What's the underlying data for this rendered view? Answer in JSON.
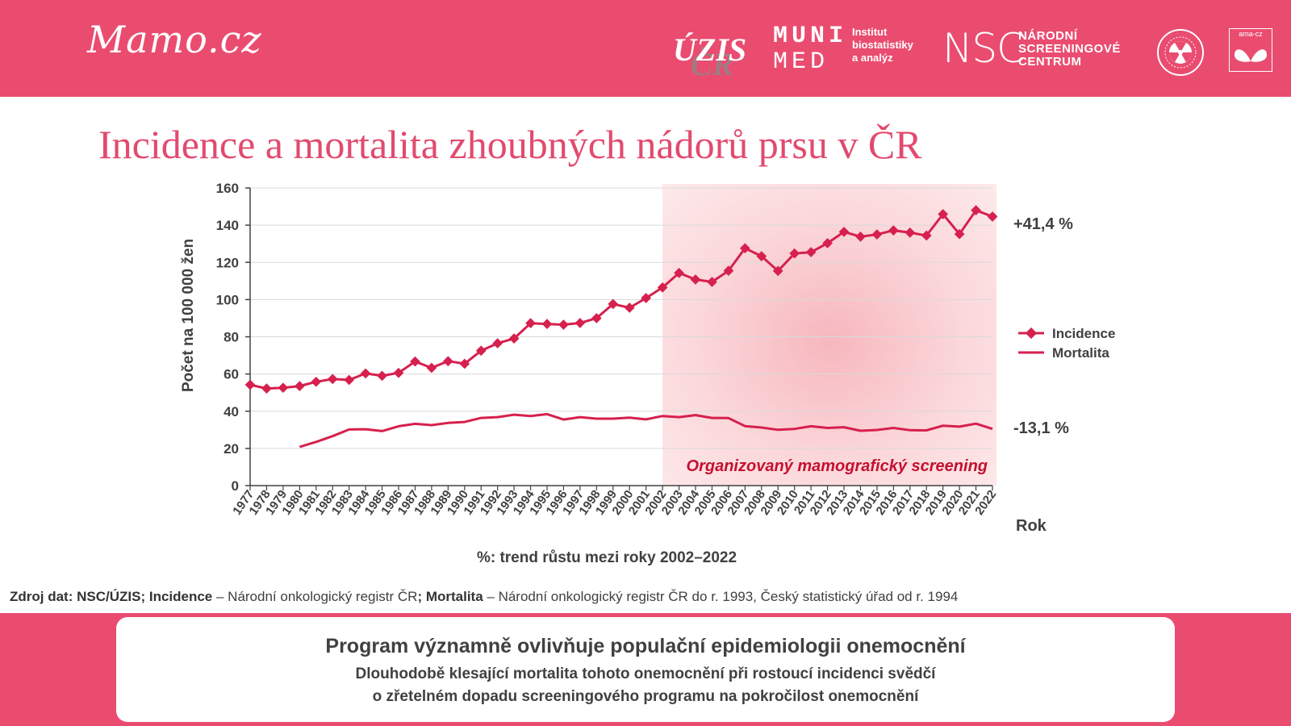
{
  "header": {
    "brand": "Mamo.cz",
    "logos": {
      "uzis": "ÚZIS",
      "uzis_sub": "ČR",
      "muni_line1": "MUNI",
      "muni_line2": "MED",
      "ibia_line1": "Institut",
      "ibia_line2": "biostatistiky",
      "ibia_line3": "a analýz",
      "nsc": "NSC",
      "nsc_line1": "NÁRODNÍ",
      "nsc_line2": "SCREENINGOVÉ",
      "nsc_line3": "CENTRUM",
      "ama": "ama-cz"
    }
  },
  "title": "Incidence a mortalita zhoubných nádorů prsu v ČR",
  "chart_data": {
    "type": "line",
    "ylabel": "Počet  na 100 000 žen",
    "xlabel": "Rok",
    "subtitle": "%: trend růstu mezi roky 2002–2022",
    "ylim": [
      0,
      160
    ],
    "yticks": [
      0,
      20,
      40,
      60,
      80,
      100,
      120,
      140,
      160
    ],
    "grid": "horizontal",
    "legend_position": "right",
    "shaded_region": {
      "from": 2002,
      "to": 2022,
      "label": "Organizovaný mamografický screening"
    },
    "x": [
      1977,
      1978,
      1979,
      1980,
      1981,
      1982,
      1983,
      1984,
      1985,
      1986,
      1987,
      1988,
      1989,
      1990,
      1991,
      1992,
      1993,
      1994,
      1995,
      1996,
      1997,
      1998,
      1999,
      2000,
      2001,
      2002,
      2003,
      2004,
      2005,
      2006,
      2007,
      2008,
      2009,
      2010,
      2011,
      2012,
      2013,
      2014,
      2015,
      2016,
      2017,
      2018,
      2019,
      2020,
      2021,
      2022
    ],
    "series": [
      {
        "name": "Incidence",
        "color": "#D6204E",
        "marker": "diamond",
        "end_annotation": "+41,4 %",
        "values": [
          54.2,
          52.2,
          52.6,
          53.5,
          55.8,
          57.3,
          56.8,
          60.3,
          59.0,
          60.6,
          66.7,
          63.3,
          66.9,
          65.5,
          72.5,
          76.5,
          79.1,
          87.3,
          86.9,
          86.5,
          87.4,
          90.0,
          97.6,
          95.6,
          100.8,
          106.5,
          114.3,
          110.8,
          109.5,
          115.5,
          127.6,
          123.3,
          115.4,
          124.8,
          125.5,
          130.3,
          136.4,
          133.8,
          135.0,
          137.2,
          136.0,
          134.4,
          145.9,
          135.2,
          148.0,
          144.6
        ]
      },
      {
        "name": "Mortalita",
        "color": "#D6204E",
        "marker": "none",
        "end_annotation": "-13,1 %",
        "values": [
          null,
          null,
          null,
          20.8,
          23.5,
          26.6,
          30.2,
          30.3,
          29.3,
          31.9,
          33.2,
          32.5,
          33.7,
          34.2,
          36.4,
          36.8,
          38.1,
          37.4,
          38.4,
          35.5,
          36.8,
          36.0,
          36.0,
          36.5,
          35.6,
          37.4,
          36.8,
          37.9,
          36.4,
          36.3,
          32.0,
          31.2,
          30.0,
          30.5,
          31.9,
          31.0,
          31.4,
          29.5,
          29.9,
          31.0,
          29.8,
          29.7,
          32.2,
          31.7,
          33.3,
          30.5
        ]
      }
    ]
  },
  "source": {
    "lead": "Zdroj dat: NSC/ÚZIS;",
    "inc_label": "Incidence",
    "inc_text": " – Národní onkologický registr ČR",
    "mort_label": "; Mortalita",
    "mort_text": " – Národní onkologický registr ČR do r. 1993, Český statistický úřad od r. 1994"
  },
  "footer": {
    "headline": "Program významně ovlivňuje populační epidemiologii onemocnění",
    "line1": "Dlouhodobě klesající mortalita tohoto onemocnění při rostoucí incidenci svědčí",
    "line2": "o zřetelném dopadu screeningového programu na pokročilost onemocnění"
  }
}
